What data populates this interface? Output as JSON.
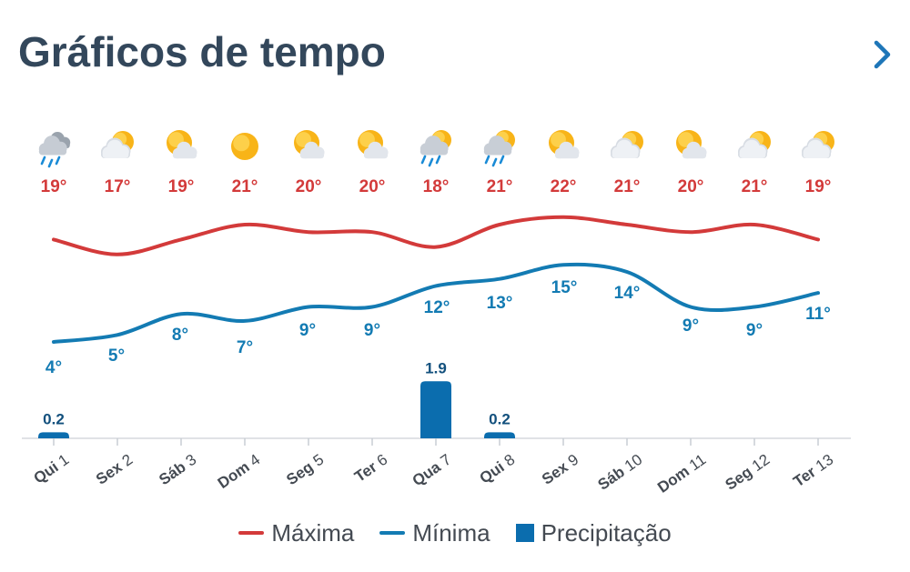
{
  "header": {
    "title": "Gráficos de tempo"
  },
  "colors": {
    "max": "#d33a3a",
    "min": "#137bb3",
    "precip": "#0b6dae",
    "title": "#33475b",
    "axis_text": "#444a52"
  },
  "legend": {
    "max_label": "Máxima",
    "min_label": "Mínima",
    "precip_label": "Precipitação"
  },
  "chart_data": {
    "type": "line",
    "categories": [
      "Qui 1",
      "Sex 2",
      "Sáb 3",
      "Dom 4",
      "Seg 5",
      "Ter 6",
      "Qua 7",
      "Qui 8",
      "Sex 9",
      "Sáb 10",
      "Dom 11",
      "Seg 12",
      "Ter 13"
    ],
    "icons": [
      "rain-cloud-icon",
      "partly-cloudy-icon",
      "sun-cloud-icon",
      "sun-icon",
      "sun-cloud-icon",
      "sun-cloud-icon",
      "sun-rain-icon",
      "sun-rain-icon",
      "sun-cloud-icon",
      "partly-cloudy-icon",
      "sun-cloud-icon",
      "partly-cloudy-icon",
      "partly-cloudy-icon"
    ],
    "series": [
      {
        "name": "Máxima",
        "values": [
          19,
          17,
          19,
          21,
          20,
          20,
          18,
          21,
          22,
          21,
          20,
          21,
          19
        ],
        "labels": [
          "19°",
          "17°",
          "19°",
          "21°",
          "20°",
          "20°",
          "18°",
          "21°",
          "22°",
          "21°",
          "20°",
          "21°",
          "19°"
        ]
      },
      {
        "name": "Mínima",
        "values": [
          4,
          5,
          8,
          7,
          9,
          9,
          12,
          13,
          15,
          14,
          9,
          9,
          11
        ],
        "labels": [
          "4°",
          "5°",
          "8°",
          "7°",
          "9°",
          "9°",
          "12°",
          "13°",
          "15°",
          "14°",
          "9°",
          "9°",
          "11°"
        ]
      },
      {
        "name": "Precipitação",
        "type": "bar",
        "values": [
          0.2,
          0,
          0,
          0,
          0,
          0,
          1.9,
          0.2,
          0,
          0,
          0,
          0,
          0
        ],
        "labels": [
          "0.2",
          "",
          "",
          "",
          "",
          "",
          "1.9",
          "0.2",
          "",
          "",
          "",
          "",
          ""
        ]
      }
    ],
    "legend_position": "bottom"
  }
}
